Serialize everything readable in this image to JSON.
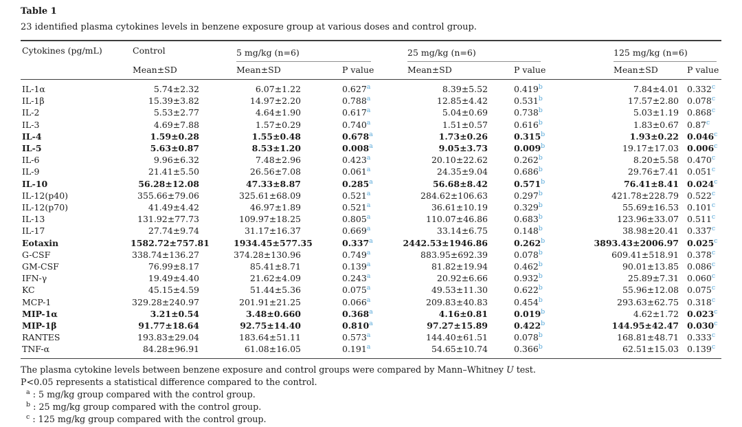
{
  "table": {
    "label": "Table 1",
    "caption": "23 identified plasma cytokines levels in benzene exposure group at various doses and control group.",
    "columns": {
      "cytokines_header": "Cytokines (pg/mL)",
      "control_header": "Control",
      "dose5_header": "5 mg/kg (n=6)",
      "dose25_header": "25 mg/kg (n=6)",
      "dose125_header": "125 mg/kg (n=6)",
      "mean_sd_label": "Mean±SD",
      "p_value_label": "P value",
      "sup_a": "a",
      "sup_b": "b",
      "sup_c": "c"
    },
    "rows": [
      {
        "name": "IL-1α",
        "bold": false,
        "control": "5.74±2.32",
        "mean5": "6.07±1.22",
        "p5": "0.627",
        "mean25": "8.39±5.52",
        "p25": "0.419",
        "mean125": "7.84±4.01",
        "p125": "0.332"
      },
      {
        "name": "IL-1β",
        "bold": false,
        "control": "15.39±3.82",
        "mean5": "14.97±2.20",
        "p5": "0.788",
        "mean25": "12.85±4.42",
        "p25": "0.531",
        "mean125": "17.57±2.80",
        "p125": "0.078"
      },
      {
        "name": "IL-2",
        "bold": false,
        "control": "5.53±2.77",
        "mean5": "4.64±1.90",
        "p5": "0.617",
        "mean25": "5.04±0.69",
        "p25": "0.738",
        "mean125": "5.03±1.19",
        "p125": "0.868"
      },
      {
        "name": "IL-3",
        "bold": false,
        "control": "4.69±7.88",
        "mean5": "1.57±0.29",
        "p5": "0.740",
        "mean25": "1.51±0.57",
        "p25": "0.616",
        "mean125": "1.83±0.67",
        "p125": "0.87"
      },
      {
        "name": "IL-4",
        "bold": true,
        "control": "1.59±0.28",
        "mean5": "1.55±0.48",
        "p5": "0.678",
        "mean25": "1.73±0.26",
        "p25": "0.315",
        "mean125": "1.93±0.22",
        "p125": "0.046"
      },
      {
        "name": "IL-5",
        "bold": true,
        "control": "5.63±0.87",
        "mean5": "8.53±1.20",
        "p5": "0.008",
        "mean25": "9.05±3.73",
        "p25": "0.009",
        "mean125": "19.17±17.03",
        "p125": "0.006",
        "unbold": [
          "mean125"
        ]
      },
      {
        "name": "IL-6",
        "bold": false,
        "control": "9.96±6.32",
        "mean5": "7.48±2.96",
        "p5": "0.423",
        "mean25": "20.10±22.62",
        "p25": "0.262",
        "mean125": "8.20±5.58",
        "p125": "0.470"
      },
      {
        "name": "IL-9",
        "bold": false,
        "control": "21.41±5.50",
        "mean5": "26.56±7.08",
        "p5": "0.061",
        "mean25": "24.35±9.04",
        "p25": "0.686",
        "mean125": "29.76±7.41",
        "p125": "0.051"
      },
      {
        "name": "IL-10",
        "bold": true,
        "control": "56.28±12.08",
        "mean5": "47.33±8.87",
        "p5": "0.285",
        "mean25": "56.68±8.42",
        "p25": "0.571",
        "mean125": "76.41±8.41",
        "p125": "0.024"
      },
      {
        "name": "IL-12(p40)",
        "bold": false,
        "control": "355.66±79.06",
        "mean5": "325.61±68.09",
        "p5": "0.521",
        "mean25": "284.62±106.63",
        "p25": "0.297",
        "mean125": "421.78±228.79",
        "p125": "0.522"
      },
      {
        "name": "IL-12(p70)",
        "bold": false,
        "control": "41.49±4.42",
        "mean5": "46.97±1.89",
        "p5": "0.521",
        "mean25": "36.61±10.19",
        "p25": "0.329",
        "mean125": "55.69±16.53",
        "p125": "0.101"
      },
      {
        "name": "IL-13",
        "bold": false,
        "control": "131.92±77.73",
        "mean5": "109.97±18.25",
        "p5": "0.805",
        "mean25": "110.07±46.86",
        "p25": "0.683",
        "mean125": "123.96±33.07",
        "p125": "0.511"
      },
      {
        "name": "IL-17",
        "bold": false,
        "control": "27.74±9.74",
        "mean5": "31.17±16.37",
        "p5": "0.669",
        "mean25": "33.14±6.75",
        "p25": "0.148",
        "mean125": "38.98±20.41",
        "p125": "0.337"
      },
      {
        "name": "Eotaxin",
        "bold": true,
        "control": "1582.72±757.81",
        "mean5": "1934.45±577.35",
        "p5": "0.337",
        "mean25": "2442.53±1946.86",
        "p25": "0.262",
        "mean125": "3893.43±2006.97",
        "p125": "0.025"
      },
      {
        "name": "G-CSF",
        "bold": false,
        "control": "338.74±136.27",
        "mean5": "374.28±130.96",
        "p5": "0.749",
        "mean25": "883.95±692.39",
        "p25": "0.078",
        "mean125": "609.41±518.91",
        "p125": "0.378"
      },
      {
        "name": "GM-CSF",
        "bold": false,
        "control": "76.99±8.17",
        "mean5": "85.41±8.71",
        "p5": "0.139",
        "mean25": "81.82±19.94",
        "p25": "0.462",
        "mean125": "90.01±13.85",
        "p125": "0.086"
      },
      {
        "name": "IFN-γ",
        "bold": false,
        "control": "19.49±4.40",
        "mean5": "21.62±4.09",
        "p5": "0.243",
        "mean25": "20.92±6.66",
        "p25": "0.932",
        "mean125": "25.89±7.31",
        "p125": "0.060"
      },
      {
        "name": "KC",
        "bold": false,
        "control": "45.15±4.59",
        "mean5": "51.44±5.36",
        "p5": "0.075",
        "mean25": "49.53±11.30",
        "p25": "0.622",
        "mean125": "55.96±12.08",
        "p125": "0.075"
      },
      {
        "name": "MCP-1",
        "bold": false,
        "control": "329.28±240.97",
        "mean5": "201.91±21.25",
        "p5": "0.066",
        "mean25": "209.83±40.83",
        "p25": "0.454",
        "mean125": "293.63±62.75",
        "p125": "0.318"
      },
      {
        "name": "MIP-1α",
        "bold": true,
        "control": "3.21±0.54",
        "mean5": "3.48±0.660",
        "p5": "0.368",
        "mean25": "4.16±0.81",
        "p25": "0.019",
        "mean125": "4.62±1.72",
        "p125": "0.023",
        "unbold": [
          "mean125"
        ]
      },
      {
        "name": "MIP-1β",
        "bold": true,
        "control": "91.77±18.64",
        "mean5": "92.75±14.40",
        "p5": "0.810",
        "mean25": "97.27±15.89",
        "p25": "0.422",
        "mean125": "144.95±42.47",
        "p125": "0.030"
      },
      {
        "name": "RANTES",
        "bold": false,
        "control": "193.83±29.04",
        "mean5": "183.64±51.11",
        "p5": "0.573",
        "mean25": "144.40±61.51",
        "p25": "0.078",
        "mean125": "168.81±48.71",
        "p125": "0.333"
      },
      {
        "name": "TNF-α",
        "bold": false,
        "control": "84.28±96.91",
        "mean5": "61.08±16.05",
        "p5": "0.191",
        "mean25": "54.65±10.74",
        "p25": "0.366",
        "mean125": "62.51±15.03",
        "p125": "0.139"
      }
    ]
  },
  "footnotes": {
    "method_pre": "The plasma cytokine levels between benzene exposure and control groups were compared by Mann–Whitney ",
    "method_italic": "U",
    "method_post": " test.",
    "pvalue_note": "P<0.05 represents a statistical difference compared to the control.",
    "items": [
      {
        "marker": "a",
        "text": ": 5 mg/kg group compared with the control group."
      },
      {
        "marker": "b",
        "text": ": 25 mg/kg group compared with the control group."
      },
      {
        "marker": "c",
        "text": ": 125 mg/kg group compared with the control group."
      }
    ]
  },
  "colors": {
    "superscript_blue": "#55a7d8",
    "rule_dark": "#3c3c3c",
    "rule_gray": "#8f8f8f",
    "text": "#1b1b1b",
    "background": "#ffffff"
  }
}
